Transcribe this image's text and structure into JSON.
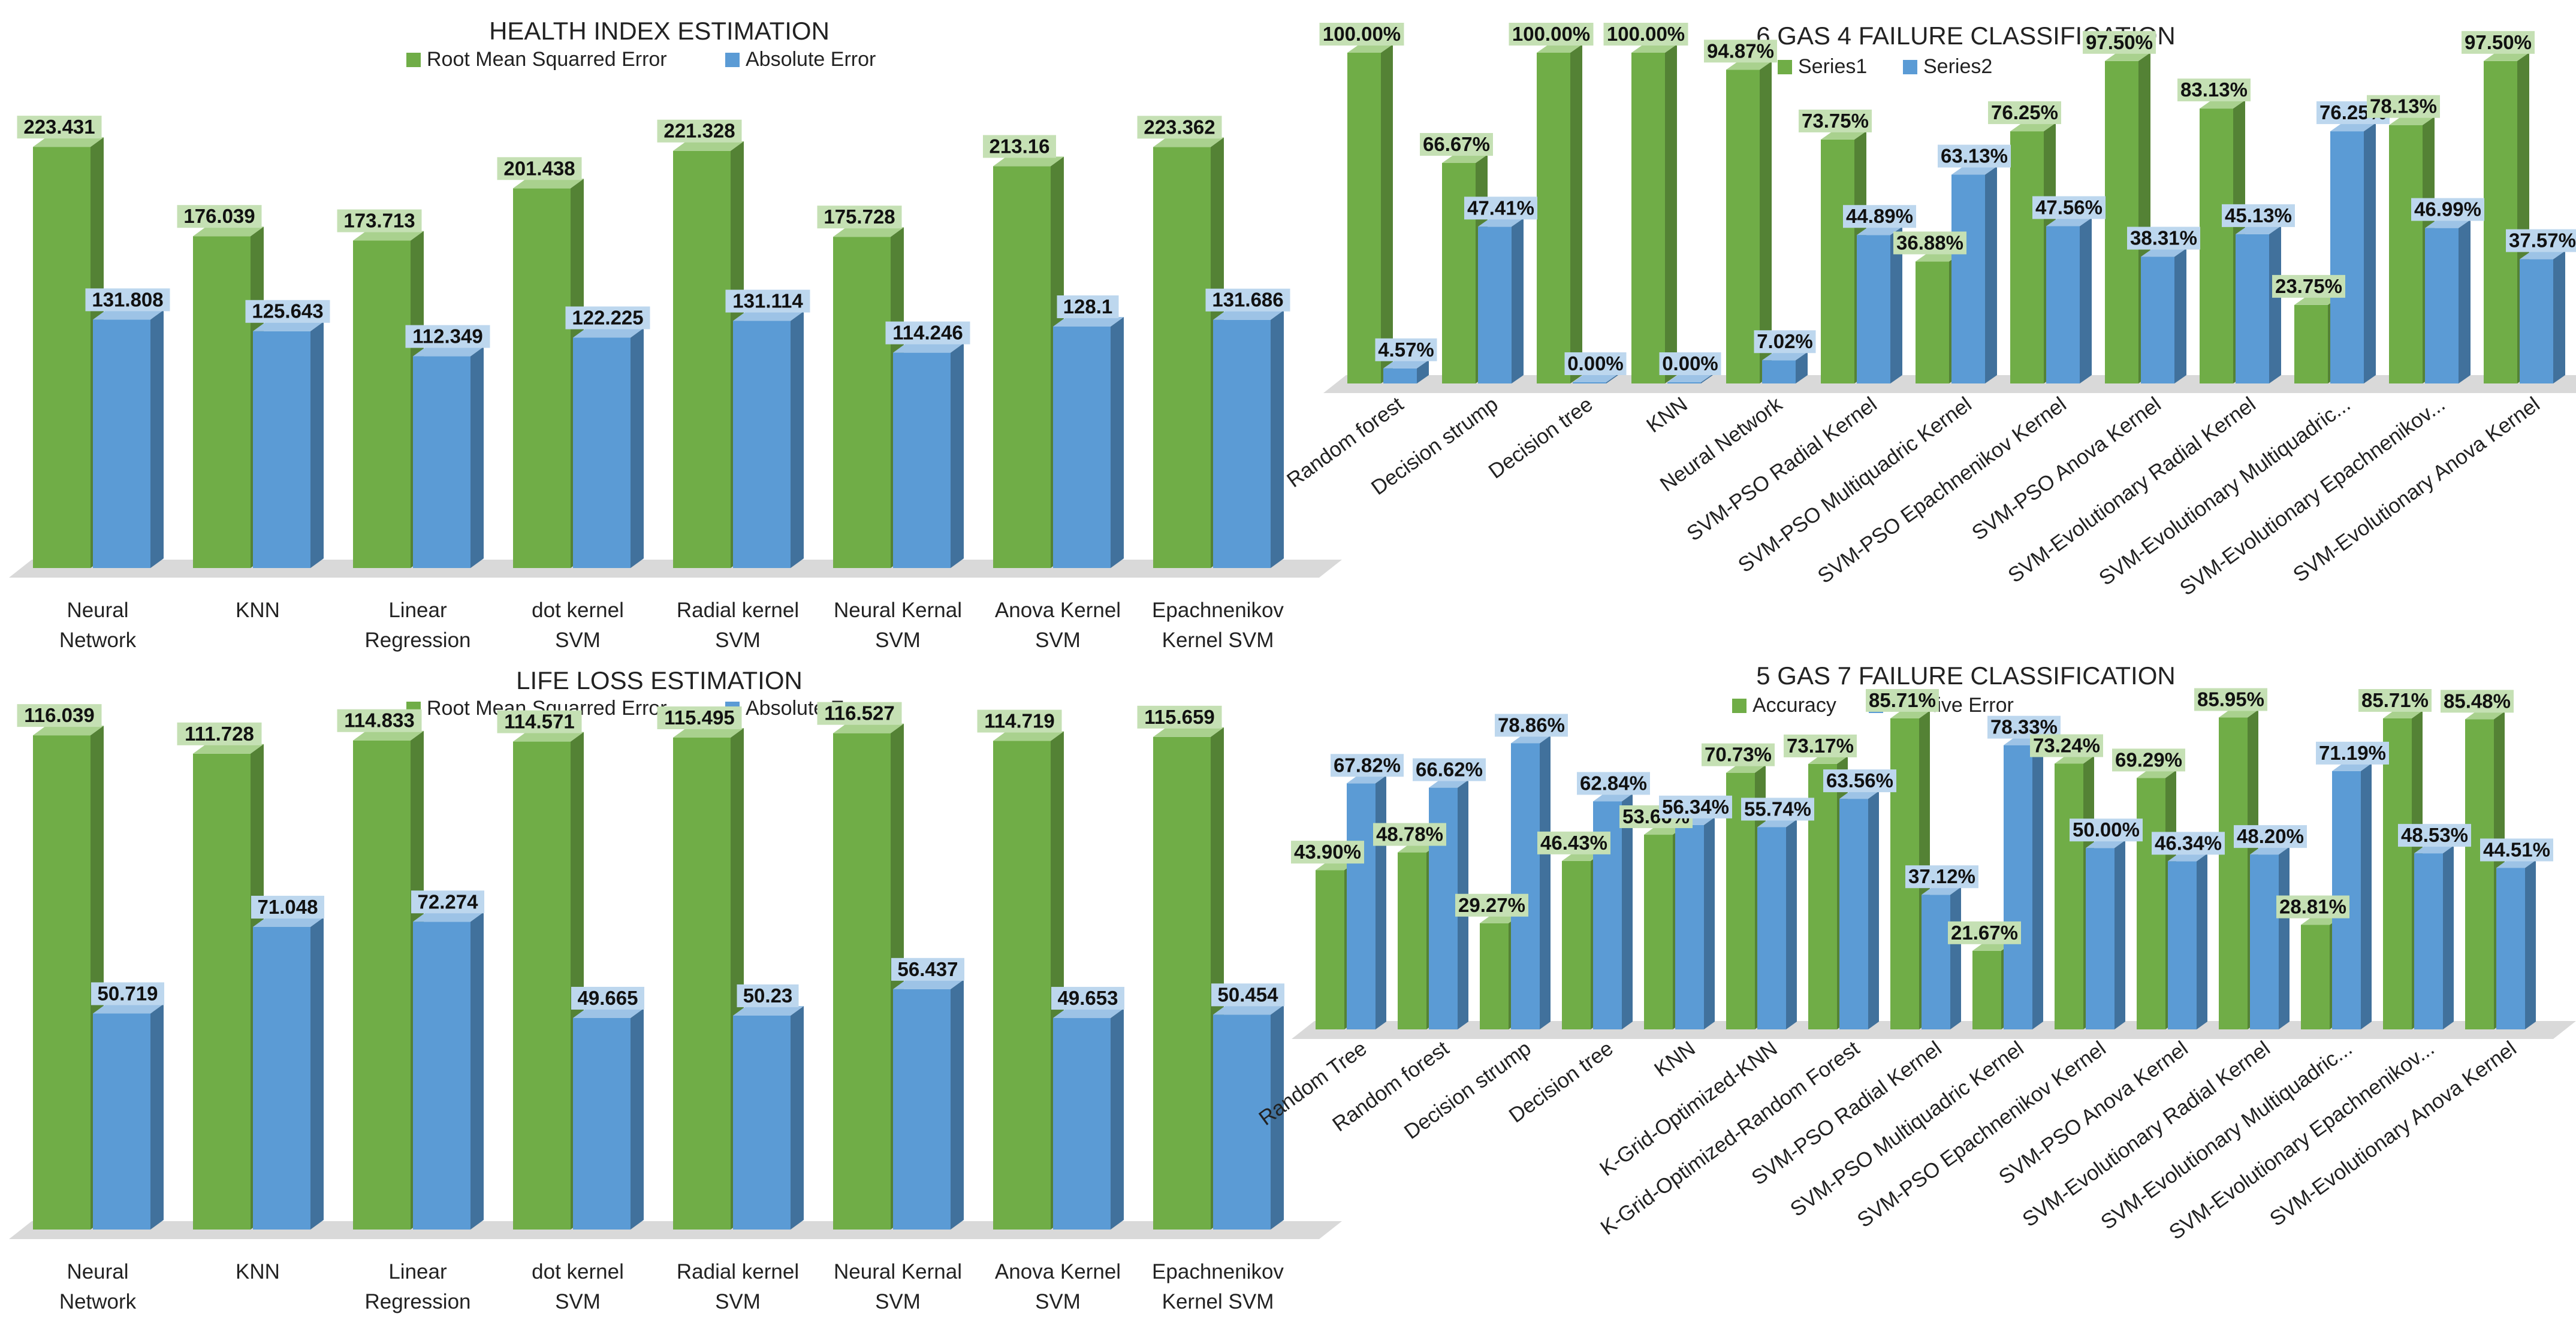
{
  "colors": {
    "green_front": "#70ad47",
    "green_side": "#548235",
    "green_top": "#a9d18e",
    "blue_front": "#5b9bd5",
    "blue_side": "#41719c",
    "blue_top": "#9dc3e6",
    "floor": "#d9d9d9",
    "label_green_bg": "#c5e0b4",
    "label_blue_bg": "#bdd7ee"
  },
  "chart_data": [
    {
      "type": "bar",
      "title": "HEALTH INDEX ESTIMATION",
      "categories": [
        "Neural Network",
        "KNN",
        "Linear Regression",
        "dot kernel SVM",
        "Radial kernel SVM",
        "Neural Kernal SVM",
        "Anova Kernel SVM",
        "Epachnenikov Kernel SVM"
      ],
      "series": [
        {
          "name": "Root Mean Squarred Error",
          "values": [
            223.431,
            176.039,
            173.713,
            201.438,
            221.328,
            175.728,
            213.16,
            223.362
          ],
          "labels": [
            "223.431",
            "176.039",
            "173.713",
            "201.438",
            "221.328",
            "175.728",
            "213.16",
            "223.362"
          ]
        },
        {
          "name": "Absolute Error",
          "values": [
            131.808,
            125.643,
            112.349,
            122.225,
            131.114,
            114.246,
            128.1,
            131.686
          ],
          "labels": [
            "131.808",
            "125.643",
            "112.349",
            "122.225",
            "131.114",
            "114.246",
            "128.1",
            "131.686"
          ]
        }
      ],
      "ylim": [
        0,
        240
      ],
      "grid": false,
      "legend": "top"
    },
    {
      "type": "bar",
      "title": "6 GAS 4 FAILURE CLASSIFICATION",
      "categories": [
        "Random forest",
        "Decision strump",
        "Decision tree",
        "KNN",
        "Neural Network",
        "SVM-PSO Radial Kernel",
        "SVM-PSO Multiquadric Kernel",
        "SVM-PSO Epachnenikov Kernel",
        "SVM-PSO Anova Kernel",
        "SVM-Evolutionary Radial Kernel",
        "SVM-Evolutionary Multiquadric...",
        "SVM-Evolutionary Epachnenikov...",
        "SVM-Evolutionary Anova Kernel"
      ],
      "series": [
        {
          "name": "Series1",
          "values": [
            100.0,
            66.67,
            100.0,
            100.0,
            94.87,
            73.75,
            36.88,
            76.25,
            97.5,
            83.13,
            23.75,
            78.13,
            97.5
          ],
          "labels": [
            "100.00%",
            "66.67%",
            "100.00%",
            "100.00%",
            "94.87%",
            "73.75%",
            "36.88%",
            "76.25%",
            "97.50%",
            "83.13%",
            "23.75%",
            "78.13%",
            "97.50%"
          ]
        },
        {
          "name": "Series2",
          "values": [
            4.57,
            47.41,
            0.0,
            0.0,
            7.02,
            44.89,
            63.13,
            47.56,
            38.31,
            45.13,
            76.25,
            46.99,
            37.57
          ],
          "labels": [
            "4.57%",
            "47.41%",
            "0.00%",
            "0.00%",
            "7.02%",
            "44.89%",
            "63.13%",
            "47.56%",
            "38.31%",
            "45.13%",
            "76.25%",
            "46.99%",
            "37.57%"
          ]
        }
      ],
      "ylim": [
        0,
        100
      ],
      "grid": false,
      "legend": "top"
    },
    {
      "type": "bar",
      "title": "LIFE LOSS ESTIMATION",
      "categories": [
        "Neural Network",
        "KNN",
        "Linear Regression",
        "dot kernel SVM",
        "Radial kernel SVM",
        "Neural Kernal SVM",
        "Anova Kernel SVM",
        "Epachnenikov Kernel SVM"
      ],
      "series": [
        {
          "name": "Root Mean Squarred Error",
          "values": [
            116.039,
            111.728,
            114.833,
            114.571,
            115.495,
            116.527,
            114.719,
            115.659
          ],
          "labels": [
            "116.039",
            "111.728",
            "114.833",
            "114.571",
            "115.495",
            "116.527",
            "114.719",
            "115.659"
          ]
        },
        {
          "name": "Absolute Error",
          "values": [
            50.719,
            71.048,
            72.274,
            49.665,
            50.23,
            56.437,
            49.653,
            50.454
          ],
          "labels": [
            "50.719",
            "71.048",
            "72.274",
            "49.665",
            "50.23",
            "56.437",
            "49.653",
            "50.454"
          ]
        }
      ],
      "ylim": [
        0,
        120
      ],
      "grid": false,
      "legend": "top"
    },
    {
      "type": "bar",
      "title": "5 GAS  7 FAILURE CLASSIFICATION",
      "categories": [
        "Random Tree",
        "Random forest",
        "Decision strump",
        "Decision tree",
        "KNN",
        "K-Grid-Optimized-KNN",
        "K-Grid-Optimized-Random Forest",
        "SVM-PSO Radial Kernel",
        "SVM-PSO Multiquadric Kernel",
        "SVM-PSO Epachnenikov Kernel",
        "SVM-PSO Anova Kernel",
        "SVM-Evolutionary Radial Kernel",
        "SVM-Evolutionary Multiquadric...",
        "SVM-Evolutionary Epachnenikov...",
        "SVM-Evolutionary Anova Kernel"
      ],
      "series": [
        {
          "name": "Accuracy",
          "values": [
            43.9,
            48.78,
            29.27,
            46.43,
            53.66,
            70.73,
            73.17,
            85.71,
            21.67,
            73.24,
            69.29,
            85.95,
            28.81,
            85.71,
            85.48
          ],
          "labels": [
            "43.90%",
            "48.78%",
            "29.27%",
            "46.43%",
            "53.66%",
            "70.73%",
            "73.17%",
            "85.71%",
            "21.67%",
            "73.24%",
            "69.29%",
            "85.95%",
            "28.81%",
            "85.71%",
            "85.48%"
          ]
        },
        {
          "name": "Relative Error",
          "values": [
            67.82,
            66.62,
            78.86,
            62.84,
            56.34,
            55.74,
            63.56,
            37.12,
            78.33,
            50.0,
            46.34,
            48.2,
            71.19,
            48.53,
            44.51
          ],
          "labels": [
            "67.82%",
            "66.62%",
            "78.86%",
            "62.84%",
            "56.34%",
            "55.74%",
            "63.56%",
            "37.12%",
            "78.33%",
            "50.00%",
            "46.34%",
            "48.20%",
            "71.19%",
            "48.53%",
            "44.51%"
          ]
        }
      ],
      "ylim": [
        0,
        90
      ],
      "grid": false,
      "legend": "top"
    }
  ]
}
